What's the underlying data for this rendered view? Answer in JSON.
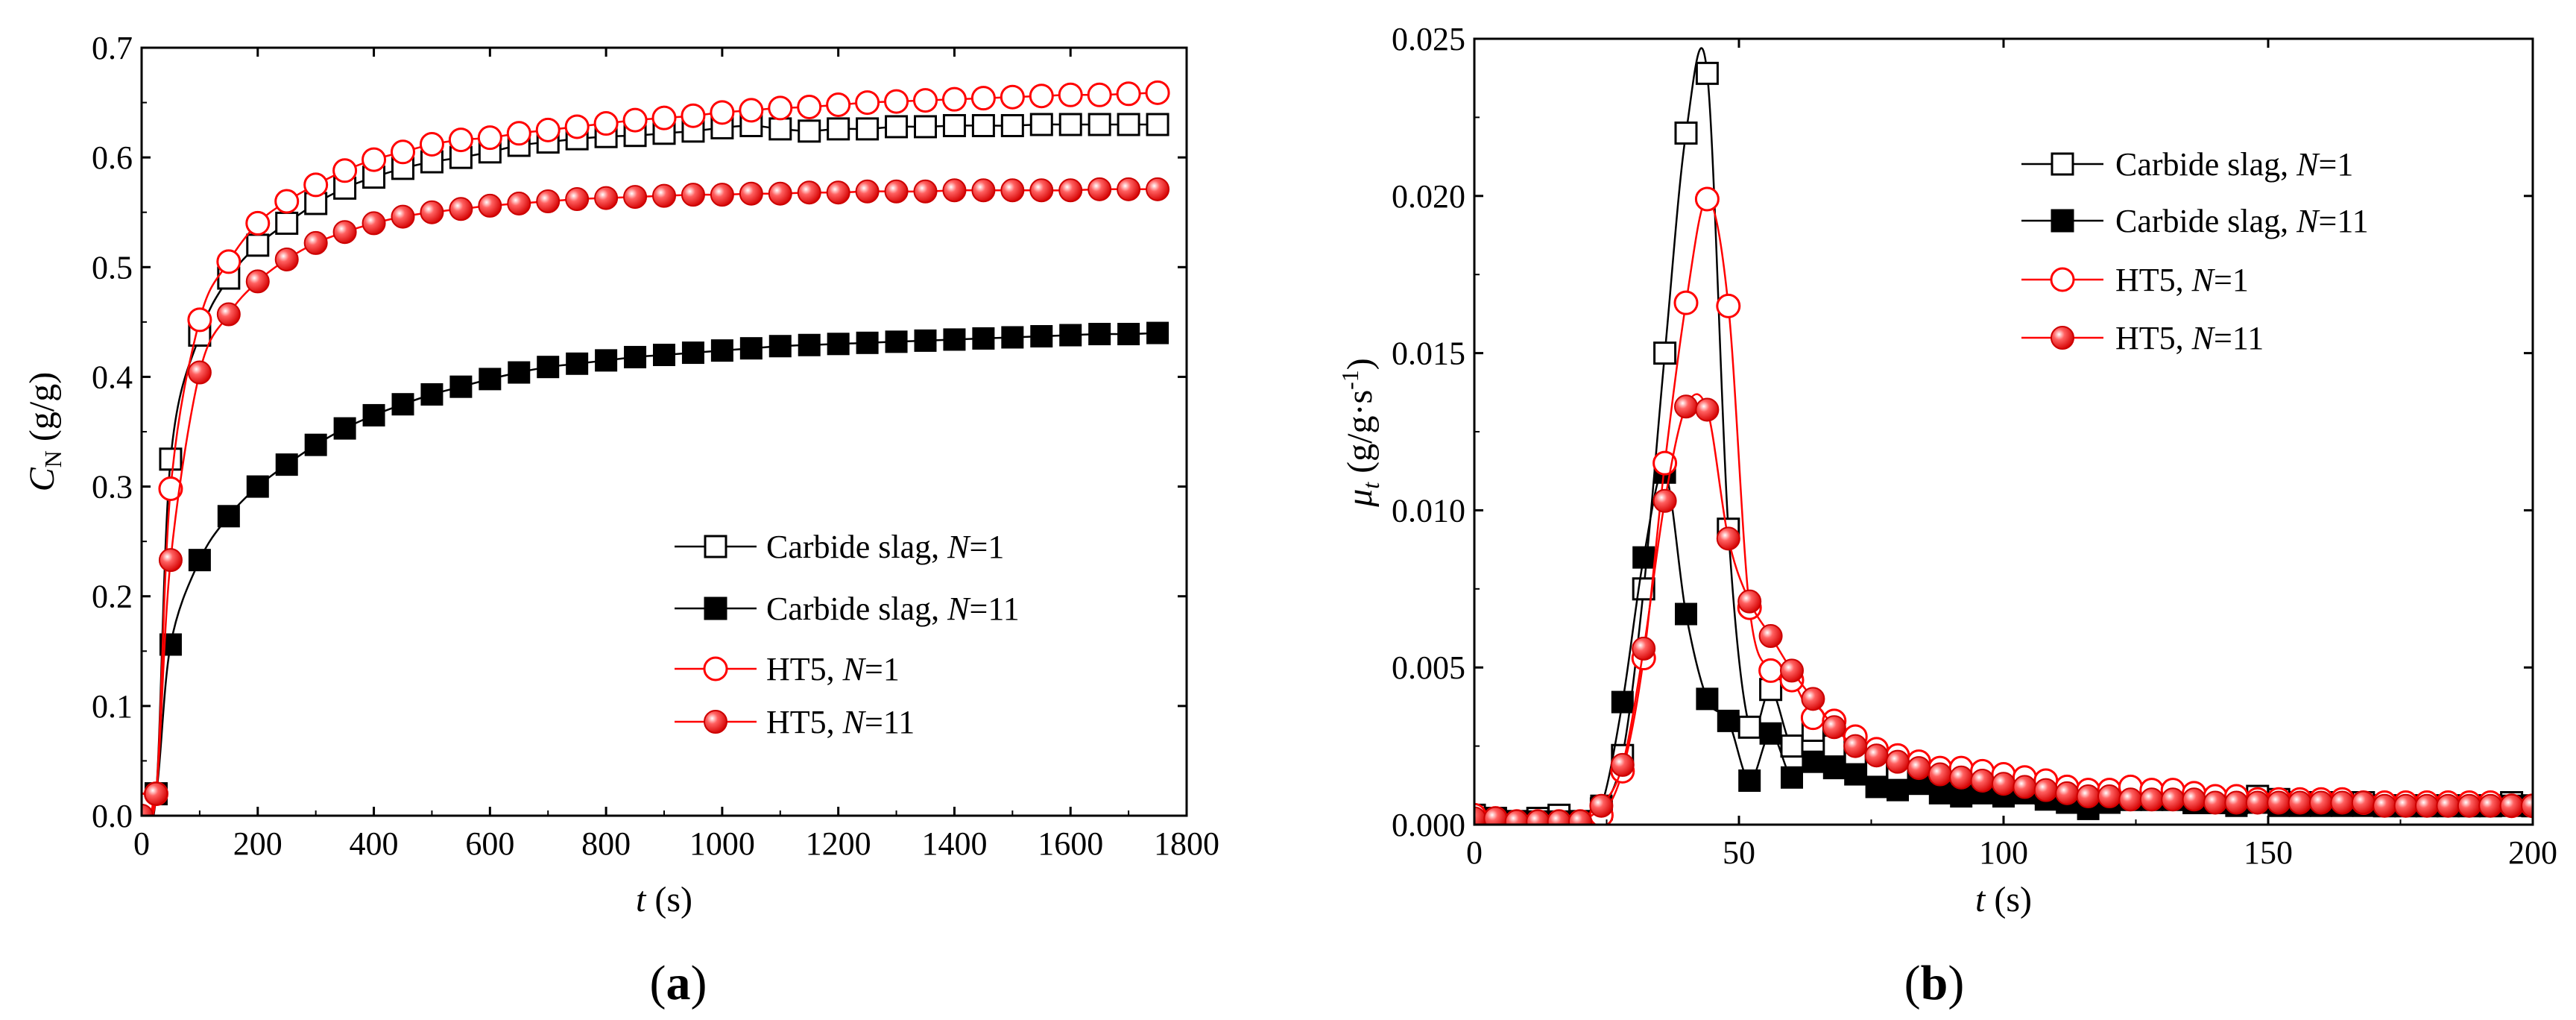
{
  "colors": {
    "black_series": "#000000",
    "red_series": "#ff0000",
    "axis": "#000000",
    "background": "#ffffff"
  },
  "chart_data": [
    {
      "panel_label": "(a)",
      "panel_label_parts": {
        "open": "(",
        "letter": "a",
        "close": ")"
      },
      "type": "line",
      "xlabel": "t (s)",
      "xlabel_parts": {
        "var": "t",
        "unit": " (s)"
      },
      "ylabel": "C_N (g/g)",
      "ylabel_parts": {
        "var": "C",
        "sub": "N",
        "unit": " (g/g)"
      },
      "xlim": [
        0,
        1800
      ],
      "ylim": [
        0,
        0.7
      ],
      "xticks": [
        0,
        200,
        400,
        600,
        800,
        1000,
        1200,
        1400,
        1600,
        1800
      ],
      "xtick_labels": [
        "0",
        "200",
        "400",
        "600",
        "800",
        "1000",
        "1200",
        "1400",
        "1600",
        "1800"
      ],
      "yticks": [
        0,
        0.1,
        0.2,
        0.3,
        0.4,
        0.5,
        0.6,
        0.7
      ],
      "ytick_labels": [
        "0.0",
        "0.1",
        "0.2",
        "0.3",
        "0.4",
        "0.5",
        "0.6",
        "0.7"
      ],
      "legend_position": "bottom-right",
      "series": [
        {
          "name": "Carbide slag, N=1",
          "label_text": "Carbide slag, ",
          "label_var": "N",
          "label_val": "=1",
          "color": "#000000",
          "marker": "square-open",
          "x": [
            0,
            25,
            50,
            100,
            150,
            200,
            250,
            300,
            350,
            400,
            450,
            500,
            550,
            600,
            650,
            700,
            750,
            800,
            850,
            900,
            950,
            1000,
            1050,
            1100,
            1150,
            1200,
            1250,
            1300,
            1350,
            1400,
            1450,
            1500,
            1550,
            1600,
            1650,
            1700,
            1750
          ],
          "y": [
            0,
            0.02,
            0.325,
            0.438,
            0.49,
            0.52,
            0.54,
            0.558,
            0.572,
            0.582,
            0.59,
            0.596,
            0.6,
            0.605,
            0.611,
            0.614,
            0.617,
            0.619,
            0.62,
            0.622,
            0.624,
            0.627,
            0.629,
            0.626,
            0.624,
            0.626,
            0.626,
            0.628,
            0.628,
            0.629,
            0.629,
            0.629,
            0.63,
            0.63,
            0.63,
            0.63,
            0.63
          ]
        },
        {
          "name": "Carbide slag, N=11",
          "label_text": "Carbide slag, ",
          "label_var": "N",
          "label_val": "=11",
          "color": "#000000",
          "marker": "square-filled",
          "x": [
            0,
            25,
            50,
            100,
            150,
            200,
            250,
            300,
            350,
            400,
            450,
            500,
            550,
            600,
            650,
            700,
            750,
            800,
            850,
            900,
            950,
            1000,
            1050,
            1100,
            1150,
            1200,
            1250,
            1300,
            1350,
            1400,
            1450,
            1500,
            1550,
            1600,
            1650,
            1700,
            1750
          ],
          "y": [
            0,
            0.02,
            0.156,
            0.233,
            0.273,
            0.3,
            0.32,
            0.338,
            0.353,
            0.365,
            0.375,
            0.384,
            0.391,
            0.398,
            0.404,
            0.409,
            0.412,
            0.415,
            0.418,
            0.42,
            0.422,
            0.424,
            0.426,
            0.428,
            0.429,
            0.43,
            0.431,
            0.432,
            0.433,
            0.434,
            0.435,
            0.436,
            0.437,
            0.438,
            0.439,
            0.439,
            0.44
          ]
        },
        {
          "name": "HT5, N=1",
          "label_text": "HT5, ",
          "label_var": "N",
          "label_val": "=1",
          "color": "#ff0000",
          "marker": "circle-open",
          "x": [
            0,
            25,
            50,
            100,
            150,
            200,
            250,
            300,
            350,
            400,
            450,
            500,
            550,
            600,
            650,
            700,
            750,
            800,
            850,
            900,
            950,
            1000,
            1050,
            1100,
            1150,
            1200,
            1250,
            1300,
            1350,
            1400,
            1450,
            1500,
            1550,
            1600,
            1650,
            1700,
            1750
          ],
          "y": [
            0.01,
            0.02,
            0.298,
            0.452,
            0.505,
            0.54,
            0.56,
            0.575,
            0.588,
            0.598,
            0.605,
            0.612,
            0.616,
            0.618,
            0.622,
            0.625,
            0.628,
            0.631,
            0.634,
            0.636,
            0.638,
            0.641,
            0.643,
            0.645,
            0.646,
            0.648,
            0.65,
            0.651,
            0.652,
            0.653,
            0.654,
            0.655,
            0.656,
            0.657,
            0.657,
            0.658,
            0.659
          ]
        },
        {
          "name": "HT5, N=11",
          "label_text": "HT5, ",
          "label_var": "N",
          "label_val": "=11",
          "color": "#ff0000",
          "marker": "circle-filled",
          "x": [
            0,
            25,
            50,
            100,
            150,
            200,
            250,
            300,
            350,
            400,
            450,
            500,
            550,
            600,
            650,
            700,
            750,
            800,
            850,
            900,
            950,
            1000,
            1050,
            1100,
            1150,
            1200,
            1250,
            1300,
            1350,
            1400,
            1450,
            1500,
            1550,
            1600,
            1650,
            1700,
            1750
          ],
          "y": [
            0,
            0.02,
            0.233,
            0.404,
            0.457,
            0.487,
            0.507,
            0.522,
            0.532,
            0.54,
            0.546,
            0.55,
            0.553,
            0.556,
            0.558,
            0.56,
            0.562,
            0.563,
            0.564,
            0.565,
            0.566,
            0.566,
            0.567,
            0.567,
            0.568,
            0.568,
            0.569,
            0.569,
            0.569,
            0.57,
            0.57,
            0.57,
            0.57,
            0.57,
            0.571,
            0.571,
            0.571
          ]
        }
      ]
    },
    {
      "panel_label": "(b)",
      "panel_label_parts": {
        "open": "(",
        "letter": "b",
        "close": ")"
      },
      "type": "line",
      "xlabel": "t (s)",
      "xlabel_parts": {
        "var": "t",
        "unit": " (s)"
      },
      "ylabel": "μ_t (g/g·s-1)",
      "ylabel_parts": {
        "var": "μ",
        "sub": "t",
        "unit": " (g/g·s",
        "sup": "-1",
        "close": ")"
      },
      "xlim": [
        0,
        200
      ],
      "ylim": [
        0,
        0.025
      ],
      "xticks": [
        0,
        50,
        100,
        150,
        200
      ],
      "xtick_labels": [
        "0",
        "50",
        "100",
        "150",
        "200"
      ],
      "yticks": [
        0,
        0.005,
        0.01,
        0.015,
        0.02,
        0.025
      ],
      "ytick_labels": [
        "0.000",
        "0.005",
        "0.010",
        "0.015",
        "0.020",
        "0.025"
      ],
      "legend_position": "top-right",
      "series": [
        {
          "name": "Carbide slag, N=1",
          "label_text": "Carbide slag, ",
          "label_var": "N",
          "label_val": "=1",
          "color": "#000000",
          "marker": "square-open",
          "x": [
            0,
            4,
            8,
            12,
            16,
            20,
            24,
            28,
            32,
            36,
            40,
            44,
            48,
            52,
            56,
            60,
            64,
            68,
            72,
            76,
            80,
            84,
            88,
            92,
            96,
            100,
            104,
            108,
            112,
            116,
            120,
            124,
            128,
            132,
            136,
            140,
            144,
            148,
            152,
            156,
            160,
            164,
            168,
            172,
            176,
            180,
            184,
            188,
            192,
            196,
            200
          ],
          "y": [
            0.0003,
            0.0002,
            0.0001,
            0.0002,
            0.0003,
            0.0001,
            0.0005,
            0.0022,
            0.0075,
            0.015,
            0.022,
            0.0239,
            0.0094,
            0.0031,
            0.0043,
            0.0025,
            0.003,
            0.0025,
            0.002,
            0.0018,
            0.0016,
            0.0015,
            0.0014,
            0.0013,
            0.0012,
            0.0012,
            0.0011,
            0.001,
            0.0009,
            0.0009,
            0.0009,
            0.0008,
            0.0008,
            0.0008,
            0.0007,
            0.0007,
            0.0007,
            0.0009,
            0.0008,
            0.0007,
            0.0007,
            0.0007,
            0.0007,
            0.0006,
            0.0006,
            0.0006,
            0.0006,
            0.0006,
            0.0006,
            0.0007,
            0.0006
          ]
        },
        {
          "name": "Carbide slag, N=11",
          "label_text": "Carbide slag, ",
          "label_var": "N",
          "label_val": "=11",
          "color": "#000000",
          "marker": "square-filled",
          "x": [
            0,
            4,
            8,
            12,
            16,
            20,
            24,
            28,
            32,
            36,
            40,
            44,
            48,
            52,
            56,
            60,
            64,
            68,
            72,
            76,
            80,
            84,
            88,
            92,
            96,
            100,
            104,
            108,
            112,
            116,
            120,
            124,
            128,
            132,
            136,
            140,
            144,
            148,
            152,
            156,
            160,
            164,
            168,
            172,
            176,
            180,
            184,
            188,
            192,
            196,
            200
          ],
          "y": [
            0.0002,
            0.0002,
            0.0001,
            0.0001,
            0.0001,
            0.0001,
            0.0006,
            0.0039,
            0.0085,
            0.0112,
            0.0067,
            0.004,
            0.0033,
            0.0014,
            0.0029,
            0.0015,
            0.002,
            0.0018,
            0.0016,
            0.0012,
            0.0011,
            0.0013,
            0.001,
            0.0009,
            0.001,
            0.0009,
            0.001,
            0.0008,
            0.0007,
            0.0005,
            0.0007,
            0.0008,
            0.0008,
            0.0008,
            0.0007,
            0.0007,
            0.0006,
            0.0007,
            0.0006,
            0.0006,
            0.0006,
            0.0006,
            0.0006,
            0.0006,
            0.0006,
            0.0006,
            0.0006,
            0.0006,
            0.0006,
            0.0006,
            0.0006
          ]
        },
        {
          "name": "HT5, N=1",
          "label_text": "HT5, ",
          "label_var": "N",
          "label_val": "=1",
          "color": "#ff0000",
          "marker": "circle-open",
          "x": [
            0,
            4,
            8,
            12,
            16,
            20,
            24,
            28,
            32,
            36,
            40,
            44,
            48,
            52,
            56,
            60,
            64,
            68,
            72,
            76,
            80,
            84,
            88,
            92,
            96,
            100,
            104,
            108,
            112,
            116,
            120,
            124,
            128,
            132,
            136,
            140,
            144,
            148,
            152,
            156,
            160,
            164,
            168,
            172,
            176,
            180,
            184,
            188,
            192,
            196,
            200
          ],
          "y": [
            0.0003,
            0.0002,
            0.0001,
            0.0001,
            0.0001,
            0.0001,
            0.0003,
            0.0017,
            0.0053,
            0.0115,
            0.0166,
            0.0199,
            0.0165,
            0.0069,
            0.0049,
            0.0046,
            0.0034,
            0.0033,
            0.0028,
            0.0024,
            0.0022,
            0.002,
            0.0018,
            0.0018,
            0.0017,
            0.0016,
            0.0015,
            0.0014,
            0.0012,
            0.0011,
            0.0011,
            0.0012,
            0.0011,
            0.0011,
            0.001,
            0.0009,
            0.0009,
            0.0008,
            0.0008,
            0.0008,
            0.0008,
            0.0008,
            0.0007,
            0.0007,
            0.0007,
            0.0007,
            0.0007,
            0.0007,
            0.0007,
            0.0006,
            0.0006
          ]
        },
        {
          "name": "HT5, N=11",
          "label_text": "HT5, ",
          "label_var": "N",
          "label_val": "=11",
          "color": "#ff0000",
          "marker": "circle-filled",
          "x": [
            0,
            4,
            8,
            12,
            16,
            20,
            24,
            28,
            32,
            36,
            40,
            44,
            48,
            52,
            56,
            60,
            64,
            68,
            72,
            76,
            80,
            84,
            88,
            92,
            96,
            100,
            104,
            108,
            112,
            116,
            120,
            124,
            128,
            132,
            136,
            140,
            144,
            148,
            152,
            156,
            160,
            164,
            168,
            172,
            176,
            180,
            184,
            188,
            192,
            196,
            200
          ],
          "y": [
            0.0002,
            0.0002,
            0.0001,
            0.0001,
            0.0001,
            0.0001,
            0.0006,
            0.0019,
            0.0056,
            0.0103,
            0.0133,
            0.0132,
            0.0091,
            0.0071,
            0.006,
            0.0049,
            0.004,
            0.0031,
            0.0025,
            0.0022,
            0.002,
            0.0018,
            0.0016,
            0.0015,
            0.0014,
            0.0013,
            0.0012,
            0.0011,
            0.001,
            0.0009,
            0.0009,
            0.0008,
            0.0008,
            0.0008,
            0.0008,
            0.0007,
            0.0007,
            0.0007,
            0.0007,
            0.0007,
            0.0007,
            0.0007,
            0.0007,
            0.0006,
            0.0006,
            0.0006,
            0.0006,
            0.0006,
            0.0006,
            0.0006,
            0.0006
          ]
        }
      ]
    }
  ]
}
